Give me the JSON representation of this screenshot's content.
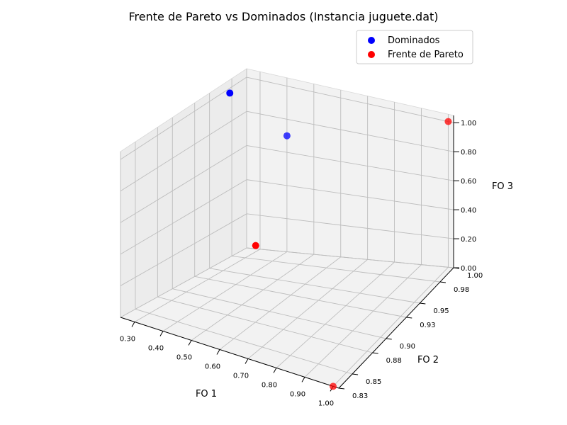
{
  "chart_data": {
    "type": "scatter",
    "projection": "3d",
    "title": "Frente de Pareto vs Dominados (Instancia juguete.dat)",
    "xlabel": "FO 1",
    "ylabel": "FO 2",
    "zlabel": "FO 3",
    "xlim": [
      0.25,
      1.02
    ],
    "ylim": [
      0.83,
      1.0
    ],
    "zlim": [
      0.0,
      1.05
    ],
    "xticks": [
      "0.30",
      "0.40",
      "0.50",
      "0.60",
      "0.70",
      "0.80",
      "0.90",
      "1.00"
    ],
    "yticks": [
      "0.83",
      "0.85",
      "0.88",
      "0.90",
      "0.93",
      "0.95",
      "0.98",
      "1.00"
    ],
    "zticks": [
      "0.00",
      "0.20",
      "0.40",
      "0.60",
      "0.80",
      "1.00"
    ],
    "grid": true,
    "legend_position": "top-right",
    "series": [
      {
        "name": "Dominados",
        "color": "#0000ff",
        "points": [
          {
            "x": 0.27,
            "y": 0.97,
            "z": 1.0
          },
          {
            "x": 0.4,
            "y": 1.0,
            "z": 0.7
          }
        ]
      },
      {
        "name": "Frente de Pareto",
        "color": "#ff0000",
        "points": [
          {
            "x": 1.0,
            "y": 0.83,
            "z": 0.0
          },
          {
            "x": 1.0,
            "y": 1.0,
            "z": 1.0
          },
          {
            "x": 0.55,
            "y": 0.9,
            "z": 0.4
          }
        ]
      }
    ]
  }
}
